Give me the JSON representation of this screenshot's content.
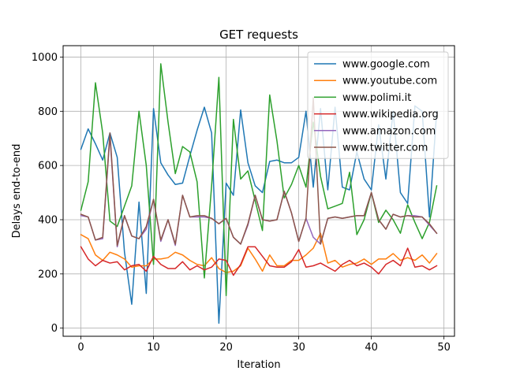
{
  "chart_data": {
    "type": "line",
    "title": "GET requests",
    "xlabel": "Iteration",
    "ylabel": "Delays end-to-end",
    "xlim": [
      -2.45,
      51.45
    ],
    "ylim": [
      -30,
      1042
    ],
    "xticks": [
      0,
      10,
      20,
      30,
      40,
      50
    ],
    "yticks": [
      0,
      200,
      400,
      600,
      800,
      1000
    ],
    "grid": true,
    "legend_position": "top-right",
    "x": [
      0,
      1,
      2,
      3,
      4,
      5,
      6,
      7,
      8,
      9,
      10,
      11,
      12,
      13,
      14,
      15,
      16,
      17,
      18,
      19,
      20,
      21,
      22,
      23,
      24,
      25,
      26,
      27,
      28,
      29,
      30,
      31,
      32,
      33,
      34,
      35,
      36,
      37,
      38,
      39,
      40,
      41,
      42,
      43,
      44,
      45,
      46,
      47,
      48,
      49
    ],
    "series": [
      {
        "name": "www.google.com",
        "color": "#1f77b4",
        "values": [
          660,
          735,
          680,
          620,
          720,
          630,
          280,
          88,
          465,
          128,
          810,
          610,
          565,
          530,
          535,
          635,
          730,
          815,
          720,
          18,
          535,
          490,
          805,
          610,
          525,
          500,
          615,
          620,
          610,
          610,
          630,
          800,
          520,
          810,
          510,
          815,
          520,
          510,
          650,
          550,
          510,
          750,
          550,
          800,
          500,
          460,
          820,
          800,
          410,
          800
        ]
      },
      {
        "name": "www.youtube.com",
        "color": "#ff7f0e",
        "values": [
          345,
          330,
          270,
          250,
          280,
          270,
          255,
          225,
          230,
          230,
          255,
          255,
          260,
          280,
          270,
          250,
          235,
          230,
          260,
          220,
          205,
          210,
          230,
          295,
          255,
          210,
          270,
          230,
          230,
          250,
          250,
          270,
          295,
          350,
          240,
          250,
          225,
          235,
          240,
          255,
          235,
          255,
          255,
          275,
          250,
          260,
          250,
          270,
          240,
          275
        ]
      },
      {
        "name": "www.polimi.it",
        "color": "#2ca02c",
        "values": [
          435,
          540,
          905,
          720,
          395,
          375,
          450,
          525,
          800,
          600,
          235,
          975,
          760,
          570,
          670,
          650,
          540,
          185,
          525,
          925,
          120,
          770,
          550,
          580,
          470,
          360,
          860,
          690,
          480,
          530,
          600,
          520,
          760,
          560,
          440,
          450,
          460,
          575,
          345,
          400,
          500,
          390,
          435,
          400,
          350,
          455,
          390,
          330,
          390,
          525
        ]
      },
      {
        "name": "www.wikipedia.org",
        "color": "#d62728",
        "values": [
          300,
          255,
          230,
          250,
          240,
          245,
          215,
          230,
          235,
          210,
          265,
          235,
          220,
          220,
          245,
          215,
          230,
          215,
          225,
          255,
          250,
          195,
          235,
          300,
          300,
          265,
          230,
          225,
          225,
          245,
          290,
          225,
          230,
          240,
          225,
          210,
          235,
          250,
          230,
          240,
          225,
          200,
          235,
          250,
          230,
          295,
          225,
          230,
          215,
          230
        ]
      },
      {
        "name": "www.amazon.com",
        "color": "#9467bd",
        "values": [
          415,
          410,
          325,
          330,
          710,
          300,
          415,
          340,
          330,
          365,
          475,
          320,
          400,
          305,
          490,
          410,
          410,
          410,
          405,
          385,
          405,
          335,
          310,
          380,
          490,
          400,
          395,
          400,
          505,
          425,
          320,
          405,
          335,
          310,
          405,
          410,
          405,
          410,
          415,
          415,
          500,
          400,
          365,
          420,
          410,
          415,
          415,
          410,
          380,
          350
        ]
      },
      {
        "name": "www.twitter.com",
        "color": "#8c564b",
        "values": [
          420,
          410,
          325,
          335,
          720,
          305,
          415,
          340,
          330,
          375,
          475,
          325,
          400,
          310,
          490,
          410,
          415,
          415,
          405,
          385,
          405,
          335,
          310,
          385,
          490,
          400,
          395,
          400,
          505,
          425,
          320,
          405,
          850,
          310,
          405,
          410,
          405,
          410,
          415,
          415,
          500,
          400,
          365,
          420,
          410,
          415,
          410,
          410,
          385,
          350
        ]
      }
    ]
  }
}
